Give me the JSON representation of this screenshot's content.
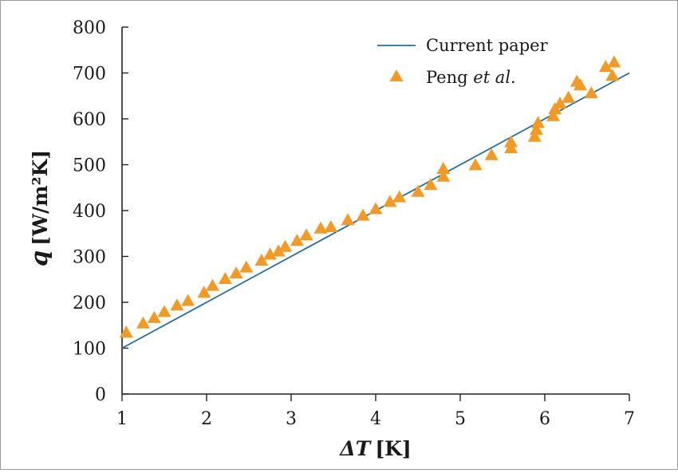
{
  "chart_data": {
    "type": "scatter",
    "title": "",
    "xlabel": "ΔT [K]",
    "xlabel_symbol": "ΔT",
    "xlabel_unit": "[K]",
    "ylabel": "q [W/m²K]",
    "ylabel_symbol": "q",
    "ylabel_unit": "[W/m²K]",
    "xlim": [
      1,
      7
    ],
    "ylim": [
      0,
      800
    ],
    "x_ticks": [
      1,
      2,
      3,
      4,
      5,
      6,
      7
    ],
    "y_ticks": [
      0,
      100,
      200,
      300,
      400,
      500,
      600,
      700,
      800
    ],
    "grid": false,
    "legend_position": "top-right",
    "series": [
      {
        "name": "Current paper",
        "kind": "line",
        "color": "#1f6fa8",
        "x": [
          1,
          7
        ],
        "y": [
          100,
          700
        ]
      },
      {
        "name": "Peng et al.",
        "name_plain": "Peng ",
        "name_italic": "et al.",
        "kind": "scatter",
        "marker": "triangle",
        "color": "#f39a25",
        "x": [
          1.05,
          1.25,
          1.38,
          1.5,
          1.65,
          1.78,
          1.97,
          2.07,
          2.22,
          2.35,
          2.47,
          2.65,
          2.75,
          2.85,
          2.93,
          3.07,
          3.18,
          3.35,
          3.47,
          3.67,
          3.85,
          4.0,
          4.17,
          4.28,
          4.5,
          4.65,
          4.8,
          4.8,
          5.18,
          5.37,
          5.6,
          5.6,
          5.88,
          5.9,
          5.92,
          6.1,
          6.12,
          6.18,
          6.28,
          6.38,
          6.42,
          6.55,
          6.72,
          6.8,
          6.82
        ],
        "y": [
          133,
          153,
          165,
          178,
          192,
          202,
          220,
          235,
          250,
          262,
          275,
          290,
          303,
          310,
          320,
          333,
          345,
          360,
          363,
          378,
          388,
          402,
          418,
          428,
          440,
          455,
          473,
          490,
          498,
          520,
          535,
          548,
          560,
          575,
          590,
          605,
          620,
          632,
          645,
          680,
          672,
          655,
          712,
          693,
          722
        ]
      }
    ]
  }
}
